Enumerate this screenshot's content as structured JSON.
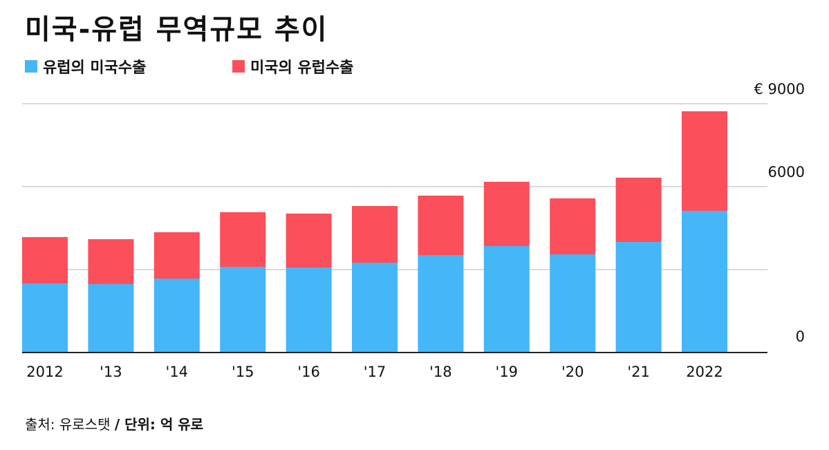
{
  "chart_data": {
    "type": "bar",
    "stacked": true,
    "title": "미국-유럽 무역규모 추이",
    "categories": [
      "2012",
      "'13",
      "'14",
      "'15",
      "'16",
      "'17",
      "'18",
      "'19",
      "'20",
      "'21",
      "2022"
    ],
    "series": [
      {
        "name": "유럽의 미국수출",
        "color": "#45b6f7",
        "values": [
          2500,
          2475,
          2675,
          3100,
          3075,
          3250,
          3525,
          3850,
          3550,
          4000,
          5125
        ]
      },
      {
        "name": "미국의 유럽수출",
        "color": "#fb4f5c",
        "values": [
          1675,
          1625,
          1675,
          1975,
          1950,
          2050,
          2150,
          2325,
          2025,
          2325,
          3600
        ]
      }
    ],
    "ylim": [
      0,
      9000
    ],
    "yticks": [
      "0",
      "6000",
      "€ 9000"
    ],
    "ytick_values": [
      0,
      6000,
      9000
    ],
    "gridlines": [
      0,
      3000,
      6000,
      9000
    ],
    "grid": true,
    "legend_position": "top-left"
  },
  "source": {
    "text": "출처: 유로스탯 ",
    "unit": "/ 단위: 억 유로"
  }
}
